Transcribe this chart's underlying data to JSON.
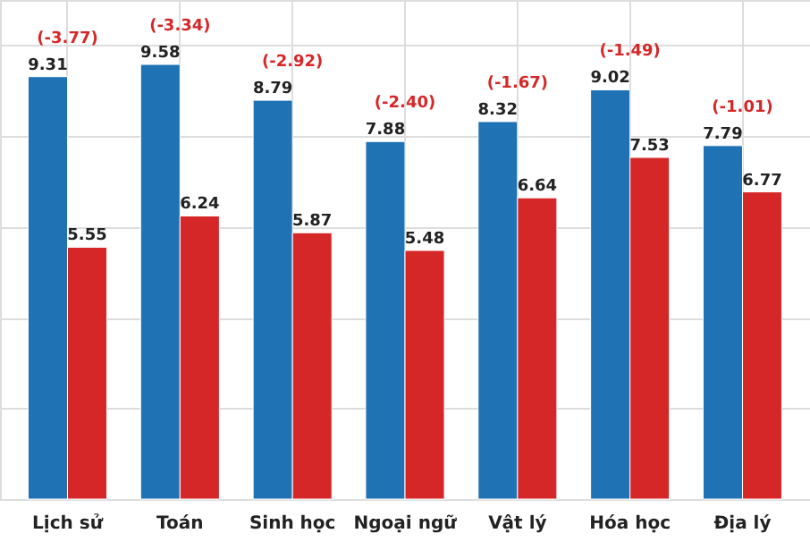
{
  "chart_data": {
    "type": "bar",
    "categories": [
      "Lịch sử",
      "Toán",
      "Sinh học",
      "Ngoại ngữ",
      "Vật lý",
      "Hóa học",
      "Địa lý"
    ],
    "series": [
      {
        "color": "#1f72b4",
        "values": [
          9.31,
          9.58,
          8.79,
          7.88,
          8.32,
          9.02,
          7.79
        ]
      },
      {
        "color": "#d62728",
        "values": [
          5.55,
          6.24,
          5.87,
          5.48,
          6.64,
          7.53,
          6.77
        ]
      }
    ],
    "annotations": [
      "(-3.77)",
      "(-3.34)",
      "(-2.92)",
      "(-2.40)",
      "(-1.67)",
      "(-1.49)",
      "(-1.01)"
    ],
    "ylim": [
      0,
      11
    ],
    "yticks": [
      0,
      2,
      4,
      6,
      8,
      10
    ],
    "data_labels": true,
    "grid": true,
    "tick_labels": "x"
  }
}
